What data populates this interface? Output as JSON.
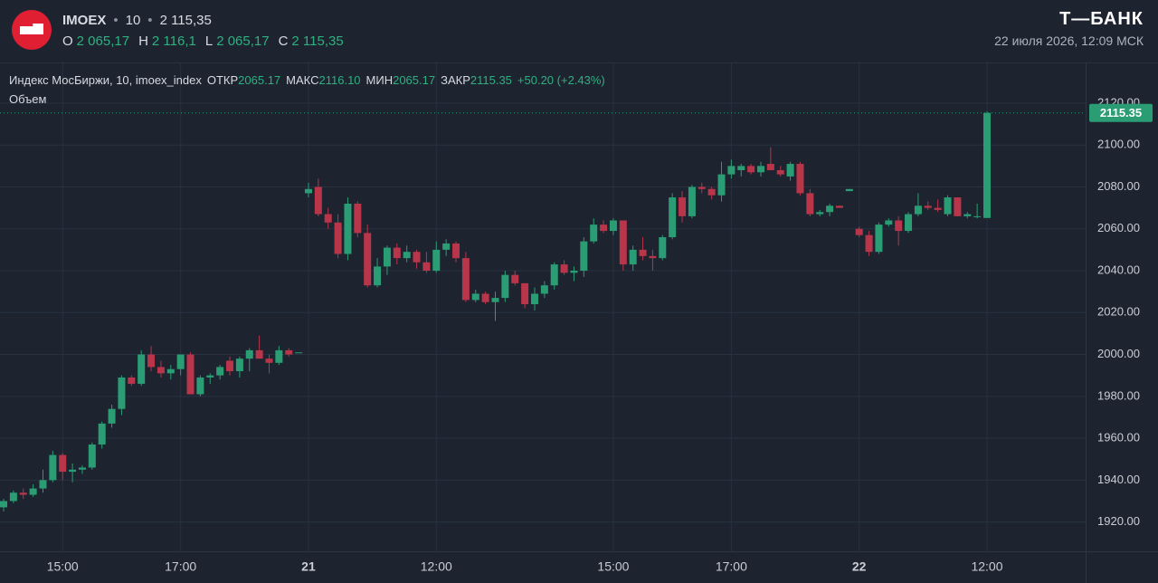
{
  "header": {
    "ticker": "IMOEX",
    "interval": "10",
    "price": "2 115,35",
    "ohlc": [
      {
        "key": "O",
        "value": "2 065,17"
      },
      {
        "key": "H",
        "value": "2 116,1"
      },
      {
        "key": "L",
        "value": "2 065,17"
      },
      {
        "key": "C",
        "value": "2 115,35"
      }
    ],
    "brand": "Т—БАНК",
    "datetime": "22 июля 2026, 12:09 МСК"
  },
  "chart_data": {
    "type": "candlestick",
    "title": "Индекс МосБиржи, 10, imoex_index",
    "legend_values": [
      {
        "key": "ОТКР",
        "value": "2065.17"
      },
      {
        "key": "МАКС",
        "value": "2116.10"
      },
      {
        "key": "МИН",
        "value": "2065.17"
      },
      {
        "key": "ЗАКР",
        "value": "2115.35"
      }
    ],
    "change": "+50.20 (+2.43%)",
    "volume_label": "Объем",
    "up_color": "#2a9d74",
    "down_color": "#b8354a",
    "grid": true,
    "ylim": [
      1906,
      2139
    ],
    "yticks": [
      {
        "value": 1920,
        "label": "1920.00"
      },
      {
        "value": 1940,
        "label": "1940.00"
      },
      {
        "value": 1960,
        "label": "1960.00"
      },
      {
        "value": 1980,
        "label": "1980.00"
      },
      {
        "value": 2000,
        "label": "2000.00"
      },
      {
        "value": 2020,
        "label": "2020.00"
      },
      {
        "value": 2040,
        "label": "2040.00"
      },
      {
        "value": 2060,
        "label": "2060.00"
      },
      {
        "value": 2080,
        "label": "2080.00"
      },
      {
        "value": 2100,
        "label": "2100.00"
      },
      {
        "value": 2120,
        "label": "2120.00"
      }
    ],
    "categories": [
      null,
      null,
      null,
      null,
      null,
      null,
      "15:00",
      null,
      null,
      null,
      null,
      null,
      null,
      null,
      null,
      null,
      null,
      null,
      "17:00",
      null,
      null,
      null,
      null,
      null,
      null,
      null,
      null,
      null,
      null,
      null,
      null,
      "21",
      null,
      null,
      null,
      null,
      null,
      null,
      null,
      null,
      null,
      null,
      null,
      null,
      "12:00",
      null,
      null,
      null,
      null,
      null,
      null,
      null,
      null,
      null,
      null,
      null,
      null,
      null,
      null,
      null,
      null,
      null,
      "15:00",
      null,
      null,
      null,
      null,
      null,
      null,
      null,
      null,
      null,
      null,
      null,
      "17:00",
      null,
      null,
      null,
      null,
      null,
      null,
      null,
      null,
      null,
      null,
      null,
      null,
      "22",
      null,
      null,
      null,
      null,
      null,
      null,
      null,
      null,
      null,
      null,
      null,
      null,
      "12:00"
    ],
    "open": [
      1927,
      1930,
      1934,
      1933,
      1936,
      1940,
      1952,
      1944,
      1945,
      1946,
      1957,
      1967,
      1974,
      1989,
      1986,
      2000,
      1994,
      1991,
      1993,
      2000,
      1981,
      1989,
      1990,
      1997,
      1992,
      1998,
      2002,
      1998,
      1996,
      2002,
      2001,
      2077,
      2080,
      2067,
      2063,
      2048,
      2072,
      2058,
      2033,
      2042,
      2051,
      2046,
      2049,
      2044,
      2040,
      2050,
      2053,
      2046,
      2026,
      2029,
      2025,
      2027,
      2038,
      2034,
      2024,
      2029,
      2033,
      2043,
      2039,
      2040,
      2054,
      2062,
      2059,
      2064,
      2043,
      2050,
      2047,
      2046,
      2056,
      2075,
      2066,
      2080,
      2079,
      2076,
      2086,
      2088,
      2090,
      2087,
      2091,
      2088,
      2085,
      2091,
      2077,
      2067,
      2068,
      2071,
      2078,
      2060,
      2057,
      2049,
      2062,
      2064,
      2059,
      2067,
      2071,
      2070,
      2067,
      2075,
      2066,
      2066,
      2065.17
    ],
    "high": [
      1931,
      1935,
      1936,
      1938,
      1945,
      1954,
      1953,
      1948,
      1947,
      1958,
      1968,
      1976,
      1990,
      1990,
      2002,
      2004,
      1997,
      1995,
      2000,
      2001,
      1990,
      1991,
      1995,
      1999,
      1999,
      2003,
      2009,
      2000,
      2004,
      2003,
      2001,
      2082,
      2084,
      2070,
      2067,
      2075,
      2073,
      2062,
      2046,
      2052,
      2053,
      2052,
      2050,
      2049,
      2054,
      2055,
      2054,
      2049,
      2031,
      2030,
      2030,
      2040,
      2040,
      2034,
      2032,
      2035,
      2044,
      2045,
      2042,
      2056,
      2065,
      2064,
      2065,
      2064,
      2052,
      2056,
      2050,
      2057,
      2077,
      2078,
      2081,
      2082,
      2080,
      2092,
      2093,
      2091,
      2091,
      2092,
      2099,
      2090,
      2092,
      2092,
      2079,
      2069,
      2072,
      2071,
      2079,
      2061,
      2059,
      2063,
      2065,
      2066,
      2068,
      2077,
      2073,
      2074,
      2076,
      2075,
      2068,
      2072,
      2116.1
    ],
    "low": [
      1925,
      1929,
      1931,
      1932,
      1934,
      1939,
      1940,
      1939,
      1943,
      1945,
      1955,
      1965,
      1971,
      1985,
      1985,
      1992,
      1989,
      1988,
      1990,
      1981,
      1980,
      1986,
      1988,
      1990,
      1989,
      1992,
      1998,
      1991,
      1995,
      1999,
      2001,
      2075,
      2066,
      2060,
      2046,
      2045,
      2056,
      2032,
      2032,
      2038,
      2043,
      2044,
      2041,
      2039,
      2039,
      2047,
      2044,
      2025,
      2025,
      2024,
      2016,
      2025,
      2033,
      2022,
      2021,
      2027,
      2031,
      2038,
      2035,
      2037,
      2053,
      2058,
      2057,
      2040,
      2040,
      2045,
      2040,
      2045,
      2055,
      2063,
      2065,
      2077,
      2074,
      2073,
      2084,
      2085,
      2086,
      2085,
      2088,
      2085,
      2083,
      2076,
      2066,
      2066,
      2066,
      2070,
      2078,
      2056,
      2047,
      2048,
      2061,
      2052,
      2058,
      2066,
      2069,
      2068,
      2066,
      2066,
      2065,
      2065,
      2065.17
    ],
    "close": [
      1930,
      1934,
      1933,
      1936,
      1940,
      1952,
      1944,
      1945,
      1946,
      1957,
      1967,
      1974,
      1989,
      1986,
      2000,
      1994,
      1991,
      1993,
      2000,
      1981,
      1989,
      1990,
      1994,
      1992,
      1998,
      2002,
      1998,
      1996,
      2002,
      2000,
      2001,
      2079,
      2067,
      2063,
      2048,
      2072,
      2058,
      2033,
      2042,
      2051,
      2046,
      2049,
      2044,
      2040,
      2050,
      2053,
      2046,
      2026,
      2029,
      2025,
      2027,
      2038,
      2034,
      2024,
      2029,
      2033,
      2043,
      2039,
      2040,
      2054,
      2062,
      2059,
      2064,
      2043,
      2050,
      2047,
      2046,
      2056,
      2075,
      2066,
      2080,
      2079,
      2076,
      2086,
      2090,
      2090,
      2087,
      2090,
      2088,
      2086,
      2091,
      2077,
      2067,
      2068,
      2071,
      2070,
      2079,
      2057,
      2049,
      2062,
      2064,
      2059,
      2067,
      2071,
      2070,
      2069,
      2075,
      2066,
      2067,
      2066,
      2115.35
    ]
  }
}
